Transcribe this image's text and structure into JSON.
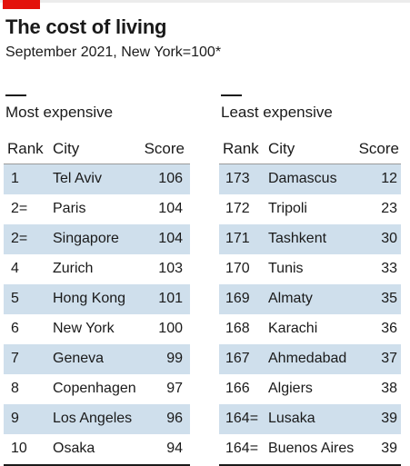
{
  "header": {
    "title": "The cost of living",
    "subtitle": "September 2021, New York=100*"
  },
  "colors": {
    "accent_red": "#e3120b",
    "row_shade": "#cfdfec"
  },
  "chart_data": [
    {
      "type": "table",
      "title": "Most expensive",
      "columns": [
        "Rank",
        "City",
        "Score"
      ],
      "rows": [
        {
          "rank": "1",
          "city": "Tel Aviv",
          "score": "106"
        },
        {
          "rank": "2=",
          "city": "Paris",
          "score": "104"
        },
        {
          "rank": "2=",
          "city": "Singapore",
          "score": "104"
        },
        {
          "rank": "4",
          "city": "Zurich",
          "score": "103"
        },
        {
          "rank": "5",
          "city": "Hong Kong",
          "score": "101"
        },
        {
          "rank": "6",
          "city": "New York",
          "score": "100"
        },
        {
          "rank": "7",
          "city": "Geneva",
          "score": "99"
        },
        {
          "rank": "8",
          "city": "Copenhagen",
          "score": "97"
        },
        {
          "rank": "9",
          "city": "Los Angeles",
          "score": "96"
        },
        {
          "rank": "10",
          "city": "Osaka",
          "score": "94"
        }
      ]
    },
    {
      "type": "table",
      "title": "Least expensive",
      "columns": [
        "Rank",
        "City",
        "Score"
      ],
      "rows": [
        {
          "rank": "173",
          "city": "Damascus",
          "score": "12"
        },
        {
          "rank": "172",
          "city": "Tripoli",
          "score": "23"
        },
        {
          "rank": "171",
          "city": "Tashkent",
          "score": "30"
        },
        {
          "rank": "170",
          "city": "Tunis",
          "score": "33"
        },
        {
          "rank": "169",
          "city": "Almaty",
          "score": "35"
        },
        {
          "rank": "168",
          "city": "Karachi",
          "score": "36"
        },
        {
          "rank": "167",
          "city": "Ahmedabad",
          "score": "37"
        },
        {
          "rank": "166",
          "city": "Algiers",
          "score": "38"
        },
        {
          "rank": "164=",
          "city": "Lusaka",
          "score": "39"
        },
        {
          "rank": "164=",
          "city": "Buenos Aires",
          "score": "39"
        }
      ]
    }
  ]
}
